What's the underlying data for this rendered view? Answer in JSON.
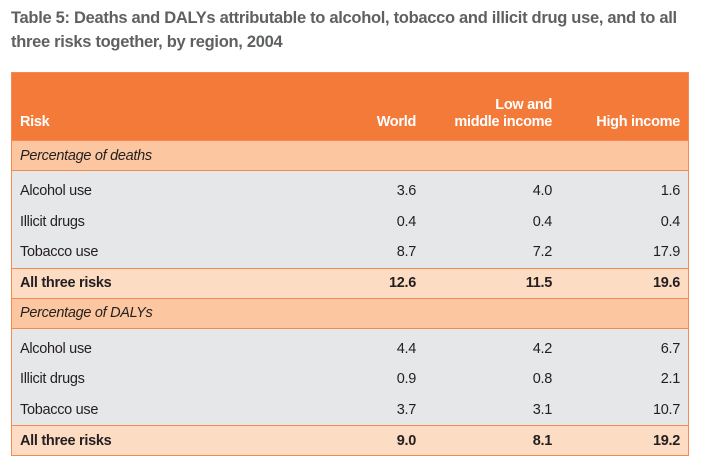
{
  "caption": {
    "line1": "Table 5: Deaths and DALYs attributable to alcohol, tobacco and illicit drug use, and to all",
    "line2": "three risks together, by region, 2004"
  },
  "header": {
    "risk": "Risk",
    "world": "World",
    "lmi_line1": "Low and",
    "lmi_line2": "middle income",
    "high": "High income"
  },
  "sections": [
    {
      "title": "Percentage of deaths",
      "rows": [
        {
          "risk": "Alcohol use",
          "world": "3.6",
          "lmi": "4.0",
          "high": "1.6"
        },
        {
          "risk": "Illicit drugs",
          "world": "0.4",
          "lmi": "0.4",
          "high": "0.4"
        },
        {
          "risk": "Tobacco use",
          "world": "8.7",
          "lmi": "7.2",
          "high": "17.9"
        }
      ],
      "total": {
        "risk": "All three risks",
        "world": "12.6",
        "lmi": "11.5",
        "high": "19.6"
      }
    },
    {
      "title": "Percentage of DALYs",
      "rows": [
        {
          "risk": "Alcohol use",
          "world": "4.4",
          "lmi": "4.2",
          "high": "6.7"
        },
        {
          "risk": "Illicit drugs",
          "world": "0.9",
          "lmi": "0.8",
          "high": "2.1"
        },
        {
          "risk": "Tobacco use",
          "world": "3.7",
          "lmi": "3.1",
          "high": "10.7"
        }
      ],
      "total": {
        "risk": "All three risks",
        "world": "9.0",
        "lmi": "8.1",
        "high": "19.2"
      }
    }
  ],
  "colors": {
    "header_bg": "#f47a3a",
    "section_bg": "#fbc6a0",
    "total_bg": "#fddcc4",
    "row_bg": "#e6e7e8",
    "caption_text": "#5f6062"
  }
}
